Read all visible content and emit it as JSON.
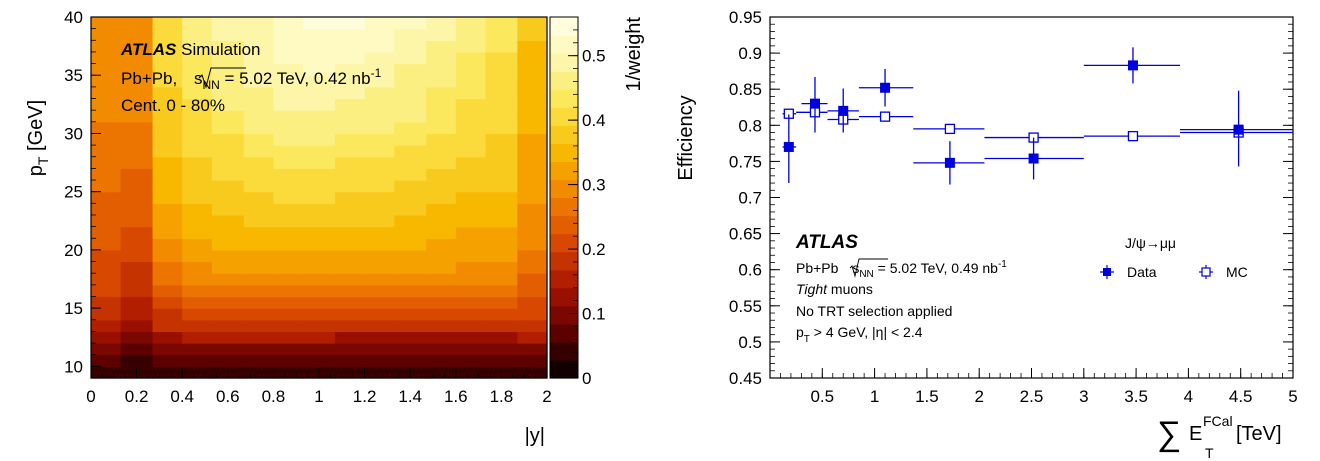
{
  "chart_data": [
    {
      "type": "heatmap",
      "panel": "left",
      "xlabel": "|y|",
      "ylabel": "p_T [GeV]",
      "colorbar_label": "1/weight",
      "xlim": [
        0,
        2
      ],
      "ylim": [
        9,
        40
      ],
      "zlim": [
        0,
        0.56
      ],
      "x_ticks": [
        "0",
        "0.2",
        "0.4",
        "0.6",
        "0.8",
        "1",
        "1.2",
        "1.4",
        "1.6",
        "1.8",
        "2"
      ],
      "y_ticks": [
        "10",
        "15",
        "20",
        "25",
        "30",
        "35",
        "40"
      ],
      "z_ticks": [
        "0",
        "0.1",
        "0.2",
        "0.3",
        "0.4",
        "0.5"
      ],
      "x_edges": [
        0,
        0.13,
        0.27,
        0.4,
        0.53,
        0.67,
        0.8,
        0.93,
        1.07,
        1.2,
        1.33,
        1.47,
        1.6,
        1.73,
        1.87,
        2.0
      ],
      "y_edges": [
        9,
        10,
        11,
        12,
        13,
        14,
        15,
        16,
        17,
        18,
        19,
        20,
        21,
        22,
        23,
        24,
        25,
        26,
        27,
        28,
        29,
        30,
        31,
        32,
        33,
        34,
        35,
        36,
        37,
        38,
        39,
        40
      ],
      "z": [
        [
          0.04,
          0.03,
          0.04,
          0.05,
          0.05,
          0.05,
          0.05,
          0.05,
          0.05,
          0.05,
          0.05,
          0.05,
          0.05,
          0.05,
          0.05
        ],
        [
          0.06,
          0.04,
          0.06,
          0.07,
          0.07,
          0.07,
          0.07,
          0.07,
          0.07,
          0.06,
          0.06,
          0.06,
          0.06,
          0.06,
          0.06
        ],
        [
          0.1,
          0.06,
          0.09,
          0.1,
          0.1,
          0.1,
          0.1,
          0.1,
          0.09,
          0.09,
          0.09,
          0.09,
          0.09,
          0.09,
          0.1
        ],
        [
          0.12,
          0.09,
          0.13,
          0.14,
          0.14,
          0.14,
          0.14,
          0.14,
          0.13,
          0.13,
          0.13,
          0.13,
          0.13,
          0.13,
          0.14
        ],
        [
          0.15,
          0.12,
          0.17,
          0.18,
          0.18,
          0.18,
          0.18,
          0.18,
          0.17,
          0.17,
          0.17,
          0.17,
          0.17,
          0.17,
          0.17
        ],
        [
          0.17,
          0.14,
          0.19,
          0.21,
          0.22,
          0.22,
          0.22,
          0.21,
          0.21,
          0.21,
          0.21,
          0.21,
          0.2,
          0.2,
          0.2
        ],
        [
          0.19,
          0.16,
          0.22,
          0.24,
          0.24,
          0.24,
          0.24,
          0.24,
          0.24,
          0.24,
          0.24,
          0.24,
          0.23,
          0.23,
          0.22
        ],
        [
          0.2,
          0.17,
          0.24,
          0.26,
          0.27,
          0.27,
          0.27,
          0.27,
          0.27,
          0.27,
          0.27,
          0.26,
          0.26,
          0.26,
          0.23
        ],
        [
          0.21,
          0.18,
          0.26,
          0.28,
          0.29,
          0.29,
          0.29,
          0.29,
          0.29,
          0.29,
          0.29,
          0.29,
          0.28,
          0.28,
          0.25
        ],
        [
          0.22,
          0.19,
          0.27,
          0.3,
          0.31,
          0.31,
          0.31,
          0.31,
          0.31,
          0.31,
          0.31,
          0.31,
          0.3,
          0.3,
          0.26
        ],
        [
          0.22,
          0.2,
          0.29,
          0.31,
          0.32,
          0.33,
          0.33,
          0.33,
          0.33,
          0.33,
          0.33,
          0.32,
          0.31,
          0.31,
          0.27
        ],
        [
          0.23,
          0.21,
          0.3,
          0.32,
          0.34,
          0.35,
          0.35,
          0.35,
          0.35,
          0.34,
          0.34,
          0.33,
          0.32,
          0.32,
          0.28
        ],
        [
          0.24,
          0.22,
          0.31,
          0.34,
          0.35,
          0.36,
          0.36,
          0.36,
          0.36,
          0.36,
          0.35,
          0.34,
          0.33,
          0.33,
          0.29
        ],
        [
          0.24,
          0.23,
          0.32,
          0.35,
          0.36,
          0.37,
          0.38,
          0.37,
          0.37,
          0.37,
          0.36,
          0.35,
          0.34,
          0.34,
          0.29
        ],
        [
          0.25,
          0.24,
          0.33,
          0.36,
          0.37,
          0.38,
          0.39,
          0.38,
          0.38,
          0.38,
          0.37,
          0.36,
          0.35,
          0.35,
          0.3
        ],
        [
          0.25,
          0.24,
          0.34,
          0.37,
          0.38,
          0.39,
          0.4,
          0.4,
          0.39,
          0.39,
          0.38,
          0.37,
          0.36,
          0.36,
          0.31
        ],
        [
          0.26,
          0.25,
          0.35,
          0.37,
          0.39,
          0.4,
          0.41,
          0.41,
          0.4,
          0.4,
          0.39,
          0.38,
          0.37,
          0.37,
          0.31
        ],
        [
          0.26,
          0.25,
          0.35,
          0.38,
          0.4,
          0.41,
          0.42,
          0.42,
          0.41,
          0.41,
          0.4,
          0.39,
          0.38,
          0.37,
          0.32
        ],
        [
          0.26,
          0.26,
          0.36,
          0.39,
          0.41,
          0.42,
          0.43,
          0.43,
          0.42,
          0.42,
          0.41,
          0.4,
          0.39,
          0.38,
          0.32
        ],
        [
          0.27,
          0.26,
          0.37,
          0.4,
          0.42,
          0.43,
          0.44,
          0.44,
          0.43,
          0.43,
          0.42,
          0.41,
          0.4,
          0.39,
          0.33
        ],
        [
          0.27,
          0.27,
          0.37,
          0.4,
          0.42,
          0.44,
          0.45,
          0.45,
          0.44,
          0.44,
          0.43,
          0.42,
          0.4,
          0.39,
          0.33
        ],
        [
          0.27,
          0.27,
          0.38,
          0.41,
          0.43,
          0.45,
          0.46,
          0.46,
          0.45,
          0.45,
          0.44,
          0.43,
          0.41,
          0.4,
          0.34
        ],
        [
          0.28,
          0.28,
          0.38,
          0.42,
          0.44,
          0.46,
          0.47,
          0.47,
          0.46,
          0.46,
          0.45,
          0.43,
          0.42,
          0.4,
          0.34
        ],
        [
          0.28,
          0.28,
          0.39,
          0.42,
          0.45,
          0.46,
          0.48,
          0.48,
          0.47,
          0.47,
          0.45,
          0.44,
          0.42,
          0.41,
          0.35
        ],
        [
          0.28,
          0.28,
          0.39,
          0.43,
          0.45,
          0.47,
          0.48,
          0.49,
          0.48,
          0.47,
          0.46,
          0.44,
          0.43,
          0.41,
          0.35
        ],
        [
          0.28,
          0.29,
          0.4,
          0.43,
          0.46,
          0.48,
          0.49,
          0.5,
          0.49,
          0.48,
          0.47,
          0.45,
          0.43,
          0.42,
          0.35
        ],
        [
          0.29,
          0.29,
          0.4,
          0.44,
          0.46,
          0.48,
          0.5,
          0.51,
          0.5,
          0.49,
          0.47,
          0.46,
          0.44,
          0.42,
          0.36
        ],
        [
          0.29,
          0.29,
          0.41,
          0.44,
          0.47,
          0.49,
          0.51,
          0.52,
          0.51,
          0.5,
          0.48,
          0.46,
          0.44,
          0.42,
          0.36
        ],
        [
          0.29,
          0.3,
          0.41,
          0.45,
          0.47,
          0.49,
          0.51,
          0.52,
          0.52,
          0.51,
          0.49,
          0.47,
          0.45,
          0.43,
          0.36
        ],
        [
          0.29,
          0.3,
          0.41,
          0.45,
          0.48,
          0.5,
          0.52,
          0.53,
          0.53,
          0.52,
          0.5,
          0.48,
          0.45,
          0.43,
          0.37
        ],
        [
          0.3,
          0.3,
          0.42,
          0.46,
          0.48,
          0.5,
          0.52,
          0.54,
          0.54,
          0.53,
          0.51,
          0.49,
          0.46,
          0.44,
          0.37
        ]
      ],
      "annotations": {
        "atlas": "ATLAS",
        "atlas_tag": "Simulation",
        "line2_pre": "Pb+Pb, ",
        "line2_root": "s",
        "line2_sub": "NN",
        "line2_post": " = 5.02 TeV, 0.42 nb",
        "line2_sup": "-1",
        "line3": "Cent. 0 - 80%"
      },
      "colormap": [
        "#000000",
        "#5c0000",
        "#a81400",
        "#d94800",
        "#f08000",
        "#f8b800",
        "#fbe44a",
        "#fdf6a8",
        "#ffffe8"
      ]
    },
    {
      "type": "scatter",
      "panel": "right",
      "ylabel": "Efficiency",
      "xlabel": "∑ E_T^FCal [TeV]",
      "xlim": [
        0,
        5
      ],
      "ylim": [
        0.45,
        0.95
      ],
      "x_ticks": [
        "0.5",
        "1",
        "1.5",
        "2",
        "2.5",
        "3",
        "3.5",
        "4",
        "4.5",
        "5"
      ],
      "y_ticks": [
        "0.45",
        "0.5",
        "0.55",
        "0.6",
        "0.65",
        "0.7",
        "0.75",
        "0.8",
        "0.85",
        "0.9",
        "0.95"
      ],
      "series": [
        {
          "name": "Data",
          "marker": "filled-square",
          "color": "#0000dd",
          "points": [
            {
              "x": 0.18,
              "xlo": 0.12,
              "xhi": 0.25,
              "y": 0.77,
              "ylo": 0.72,
              "yhi": 0.815
            },
            {
              "x": 0.43,
              "xlo": 0.3,
              "xhi": 0.55,
              "y": 0.83,
              "ylo": 0.79,
              "yhi": 0.867
            },
            {
              "x": 0.7,
              "xlo": 0.55,
              "xhi": 0.85,
              "y": 0.82,
              "ylo": 0.79,
              "yhi": 0.851
            },
            {
              "x": 1.1,
              "xlo": 0.85,
              "xhi": 1.37,
              "y": 0.852,
              "ylo": 0.826,
              "yhi": 0.878
            },
            {
              "x": 1.72,
              "xlo": 1.37,
              "xhi": 2.05,
              "y": 0.748,
              "ylo": 0.718,
              "yhi": 0.778
            },
            {
              "x": 2.52,
              "xlo": 2.05,
              "xhi": 3.0,
              "y": 0.754,
              "ylo": 0.725,
              "yhi": 0.783
            },
            {
              "x": 3.47,
              "xlo": 3.0,
              "xhi": 3.92,
              "y": 0.883,
              "ylo": 0.858,
              "yhi": 0.908
            },
            {
              "x": 4.48,
              "xlo": 3.92,
              "xhi": 5.0,
              "y": 0.794,
              "ylo": 0.743,
              "yhi": 0.848
            }
          ]
        },
        {
          "name": "MC",
          "marker": "open-square",
          "color": "#0000dd",
          "points": [
            {
              "x": 0.18,
              "xlo": 0.12,
              "xhi": 0.25,
              "y": 0.816
            },
            {
              "x": 0.43,
              "xlo": 0.25,
              "xhi": 0.55,
              "y": 0.818
            },
            {
              "x": 0.7,
              "xlo": 0.55,
              "xhi": 0.85,
              "y": 0.808
            },
            {
              "x": 1.1,
              "xlo": 0.85,
              "xhi": 1.37,
              "y": 0.812
            },
            {
              "x": 1.72,
              "xlo": 1.37,
              "xhi": 2.05,
              "y": 0.795
            },
            {
              "x": 2.52,
              "xlo": 2.05,
              "xhi": 3.0,
              "y": 0.783
            },
            {
              "x": 3.47,
              "xlo": 3.0,
              "xhi": 3.92,
              "y": 0.785
            },
            {
              "x": 4.48,
              "xlo": 3.92,
              "xhi": 5.0,
              "y": 0.79
            }
          ]
        }
      ],
      "legend": {
        "title": "J/ψ→μμ",
        "entries": [
          "Data",
          "MC"
        ],
        "placement": "bottom-right"
      },
      "annotations": {
        "atlas": "ATLAS",
        "line2_pre": "Pb+Pb ",
        "line2_root": "s",
        "line2_sub": "NN",
        "line2_post": " = 5.02 TeV, 0.49 nb",
        "line2_sup": "-1",
        "line3_italic": "Tight",
        "line3_rest": " muons",
        "line4": "No TRT selection applied",
        "line5_pre": "p",
        "line5_sub": "T",
        "line5_post": " > 4 GeV, |η| < 2.4"
      }
    }
  ]
}
